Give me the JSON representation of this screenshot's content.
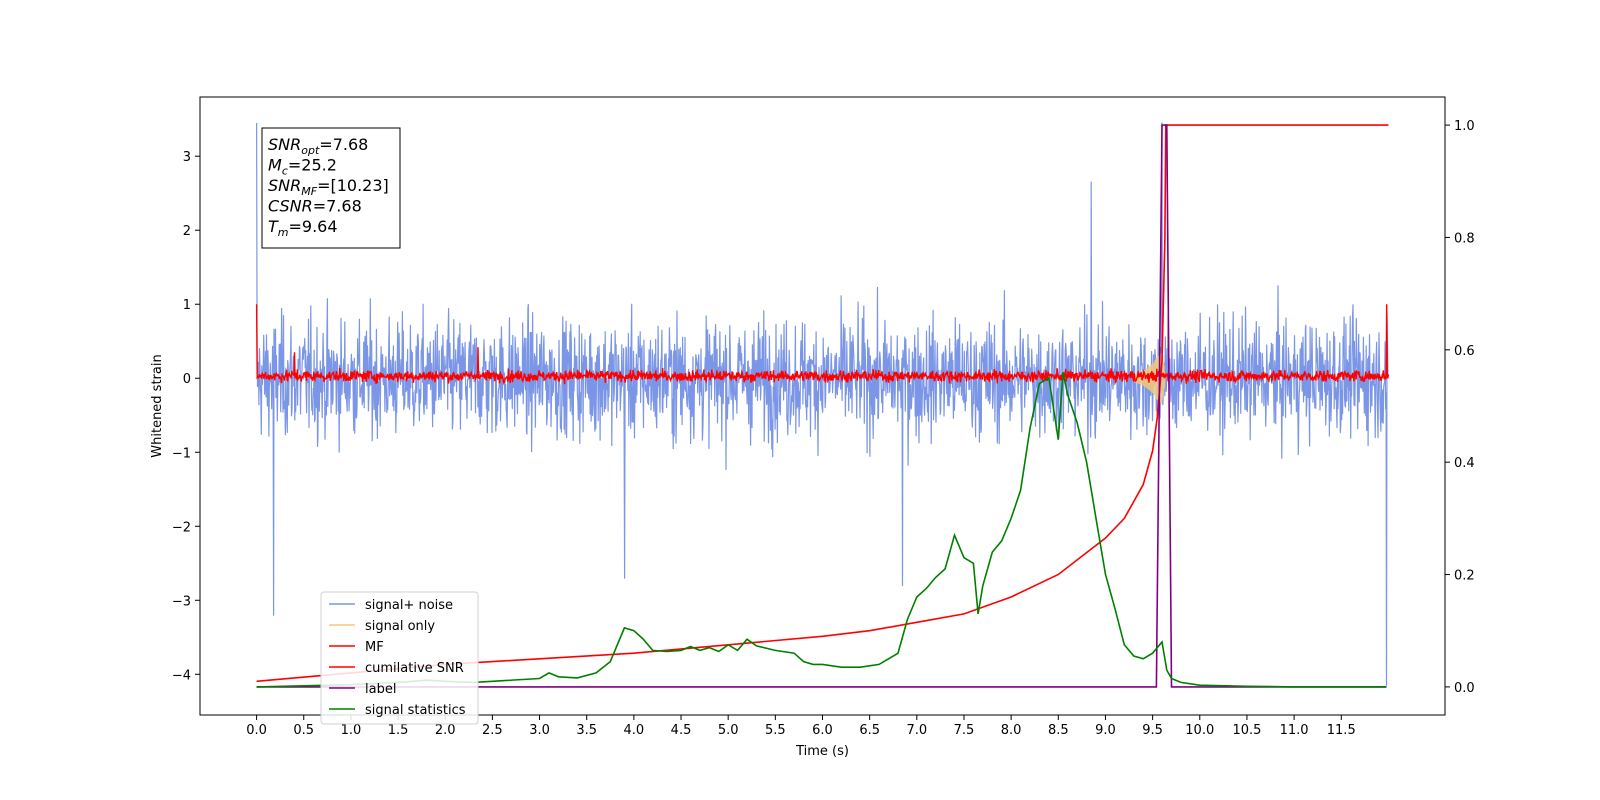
{
  "chart_data": {
    "type": "line",
    "xlabel": "Time (s)",
    "ylabel": "Whitened strain",
    "xlim": [
      -0.6,
      12.6
    ],
    "ylim": [
      -4.55,
      3.8
    ],
    "ylim_right": [
      -0.05,
      1.05
    ],
    "x_ticks": [
      "0.0",
      "0.5",
      "1.0",
      "1.5",
      "2.0",
      "2.5",
      "3.0",
      "3.5",
      "4.0",
      "4.5",
      "5.0",
      "5.5",
      "6.0",
      "6.5",
      "7.0",
      "7.5",
      "8.0",
      "8.5",
      "9.0",
      "9.5",
      "10.0",
      "10.5",
      "11.0",
      "11.5"
    ],
    "y_ticks_left": [
      "3",
      "2",
      "1",
      "0",
      "−1",
      "−2",
      "−3",
      "−4"
    ],
    "y_ticks_right": [
      "1.0",
      "0.8",
      "0.6",
      "0.4",
      "0.2",
      "0.0"
    ],
    "info_box": [
      {
        "base": "SNR",
        "sub": "opt",
        "value": "=7.68"
      },
      {
        "base": "M",
        "sub": "c",
        "value": "=25.2"
      },
      {
        "base": "SNR",
        "sub": "MF",
        "value": "=[10.23]"
      },
      {
        "base": "CSNR",
        "sub": "",
        "value": "=7.68"
      },
      {
        "base": "T",
        "sub": "m",
        "value": "=9.64"
      }
    ],
    "legend": {
      "position": "lower-left",
      "entries": [
        {
          "label": "signal+ noise",
          "color": "#7b96e6"
        },
        {
          "label": "signal only",
          "color": "#f5c97a"
        },
        {
          "label": "MF",
          "color": "#ff0000"
        },
        {
          "label": "cumilative SNR",
          "color": "#ff0000"
        },
        {
          "label": "label",
          "color": "#800080"
        },
        {
          "label": "signal statistics",
          "color": "#008000"
        }
      ]
    },
    "series": [
      {
        "name": "signal+ noise",
        "axis": "left",
        "color": "#7b96e6",
        "x_range": [
          0.0,
          12.0
        ],
        "samples": 2400,
        "typical_range": [
          -1.5,
          1.5
        ],
        "peaks": [
          [
            0.0,
            3.45
          ],
          [
            0.18,
            -3.2
          ],
          [
            3.9,
            -2.7
          ],
          [
            6.85,
            -2.8
          ],
          [
            8.85,
            2.65
          ],
          [
            9.6,
            3.45
          ],
          [
            11.98,
            -4.15
          ]
        ]
      },
      {
        "name": "signal only",
        "axis": "left",
        "color": "#f5c97a",
        "x": [
          9.3,
          9.4,
          9.5,
          9.55,
          9.6,
          9.63
        ],
        "envelope": [
          0.05,
          0.1,
          0.2,
          0.3,
          0.35,
          0.1
        ]
      },
      {
        "name": "MF",
        "axis": "left",
        "color": "#ff0000",
        "x_range": [
          0.0,
          12.0
        ],
        "typical_range": [
          -0.12,
          0.18
        ],
        "peaks": [
          [
            0.0,
            1.0
          ],
          [
            0.4,
            0.35
          ],
          [
            2.35,
            0.42
          ],
          [
            11.98,
            1.0
          ]
        ]
      },
      {
        "name": "cumilative SNR",
        "axis": "right",
        "color": "#ff0000",
        "x": [
          0.0,
          1.0,
          2.0,
          3.0,
          4.0,
          5.0,
          6.0,
          6.5,
          7.0,
          7.5,
          8.0,
          8.5,
          9.0,
          9.2,
          9.4,
          9.5,
          9.55,
          9.6,
          9.63,
          9.64,
          12.0
        ],
        "values": [
          0.01,
          0.025,
          0.04,
          0.05,
          0.06,
          0.075,
          0.09,
          0.1,
          0.115,
          0.13,
          0.16,
          0.2,
          0.265,
          0.3,
          0.36,
          0.42,
          0.48,
          0.58,
          0.8,
          1.0,
          1.0
        ]
      },
      {
        "name": "label",
        "axis": "right",
        "color": "#800080",
        "x": [
          0.0,
          9.54,
          9.6,
          9.65,
          9.7,
          11.98
        ],
        "values": [
          0.0,
          0.0,
          1.0,
          1.0,
          0.0,
          0.0
        ]
      },
      {
        "name": "signal statistics",
        "axis": "right",
        "color": "#008000",
        "x": [
          0.0,
          0.5,
          1.0,
          1.5,
          1.8,
          2.0,
          2.3,
          2.5,
          3.0,
          3.1,
          3.2,
          3.4,
          3.6,
          3.75,
          3.9,
          4.0,
          4.1,
          4.2,
          4.35,
          4.5,
          4.6,
          4.7,
          4.8,
          4.9,
          5.0,
          5.1,
          5.2,
          5.3,
          5.5,
          5.7,
          5.8,
          5.9,
          6.0,
          6.2,
          6.4,
          6.6,
          6.8,
          6.9,
          7.0,
          7.1,
          7.2,
          7.3,
          7.4,
          7.5,
          7.6,
          7.65,
          7.7,
          7.8,
          7.9,
          8.0,
          8.1,
          8.2,
          8.3,
          8.4,
          8.5,
          8.55,
          8.6,
          8.7,
          8.8,
          8.9,
          9.0,
          9.1,
          9.2,
          9.3,
          9.4,
          9.5,
          9.6,
          9.65,
          9.7,
          9.8,
          10.0,
          10.5,
          11.0,
          11.98
        ],
        "values": [
          0.0,
          0.002,
          0.004,
          0.008,
          0.012,
          0.01,
          0.008,
          0.01,
          0.015,
          0.025,
          0.018,
          0.016,
          0.025,
          0.045,
          0.105,
          0.1,
          0.085,
          0.065,
          0.063,
          0.065,
          0.072,
          0.065,
          0.07,
          0.063,
          0.075,
          0.065,
          0.085,
          0.073,
          0.065,
          0.06,
          0.045,
          0.04,
          0.04,
          0.035,
          0.035,
          0.04,
          0.06,
          0.12,
          0.16,
          0.175,
          0.195,
          0.21,
          0.27,
          0.23,
          0.22,
          0.13,
          0.18,
          0.24,
          0.26,
          0.3,
          0.35,
          0.46,
          0.54,
          0.55,
          0.44,
          0.56,
          0.52,
          0.47,
          0.4,
          0.3,
          0.2,
          0.14,
          0.075,
          0.055,
          0.05,
          0.06,
          0.08,
          0.03,
          0.015,
          0.008,
          0.003,
          0.001,
          0.0,
          0.0
        ]
      }
    ]
  }
}
